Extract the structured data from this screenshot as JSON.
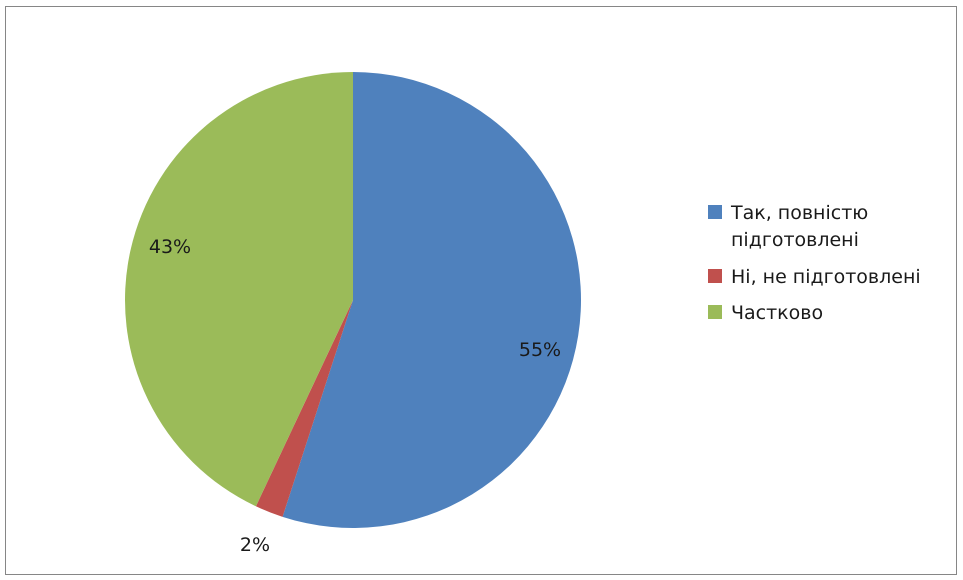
{
  "chart_data": {
    "type": "pie",
    "categories": [
      "Так, повністю підготовлені",
      "Ні, не підготовлені",
      "Частково"
    ],
    "values": [
      55,
      2,
      43
    ],
    "data_labels": [
      "55%",
      "2%",
      "43%"
    ],
    "colors": [
      "#4f81bd",
      "#c0504d",
      "#9bbb59"
    ],
    "title": "",
    "legend_position": "right"
  }
}
